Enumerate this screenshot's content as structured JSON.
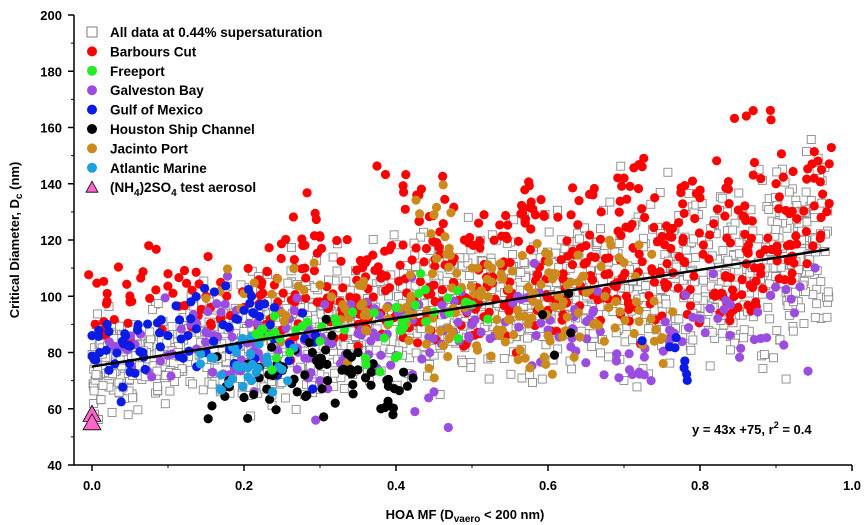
{
  "chart_data": {
    "type": "scatter",
    "xlabel_main": "HOA MF (D",
    "xlabel_sub": "vaero",
    "xlabel_rest": " < 200 nm)",
    "ylabel_main": "Critical Diameter, D",
    "ylabel_sub": "c",
    "ylabel_rest": " (nm)",
    "xlim": [
      -0.02,
      1.0
    ],
    "ylim": [
      40,
      200
    ],
    "xticks": [
      0.0,
      0.2,
      0.4,
      0.6,
      0.8,
      1.0
    ],
    "xtick_labels": [
      "0.0",
      "0.2",
      "0.4",
      "0.6",
      "0.8",
      "1.0"
    ],
    "yticks": [
      40,
      60,
      80,
      100,
      120,
      140,
      160,
      180,
      200
    ],
    "ytick_labels": [
      "40",
      "60",
      "80",
      "100",
      "120",
      "140",
      "160",
      "180",
      "200"
    ],
    "fit": {
      "slope": 43,
      "intercept": 75,
      "x_range": [
        0.0,
        0.97
      ]
    },
    "fit_label": "y = 43x +75, r",
    "fit_label_sup": "2",
    "fit_label_rest": " = 0.4",
    "legend": [
      {
        "label": "All data at 0.44% supersaturation",
        "marker": "square-open",
        "color": "#7f7f7f"
      },
      {
        "label": "Barbours Cut",
        "marker": "circle",
        "color": "#ff0000"
      },
      {
        "label": "Freeport",
        "marker": "circle",
        "color": "#22ee22"
      },
      {
        "label": "Galveston Bay",
        "marker": "circle",
        "color": "#9b4de0"
      },
      {
        "label": "Gulf of Mexico",
        "marker": "circle",
        "color": "#0a1be6"
      },
      {
        "label": "Houston Ship Channel",
        "marker": "circle",
        "color": "#000000"
      },
      {
        "label": "Jacinto Port",
        "marker": "circle",
        "color": "#cc8a1c"
      },
      {
        "label": "Atlantic Marine",
        "marker": "circle",
        "color": "#1ca0e0"
      },
      {
        "label": "(NH",
        "label_sub": "4",
        "label_rest": ")2SO",
        "label_sub2": "4",
        "label_rest2": " test aerosol",
        "marker": "triangle",
        "color": "#ff66cc"
      }
    ],
    "series": [
      {
        "name": "Barbours Cut",
        "color": "#ff0000",
        "points": [
          [
            0.02,
            101
          ],
          [
            0.05,
            98
          ],
          [
            0.1,
            108
          ],
          [
            0.15,
            100
          ],
          [
            0.2,
            96
          ],
          [
            0.24,
            104
          ],
          [
            0.28,
            110
          ],
          [
            0.3,
            98
          ],
          [
            0.33,
            103
          ],
          [
            0.36,
            112
          ],
          [
            0.38,
            94
          ],
          [
            0.42,
            107
          ],
          [
            0.44,
            117
          ],
          [
            0.46,
            98
          ],
          [
            0.49,
            120
          ],
          [
            0.52,
            104
          ],
          [
            0.55,
            112
          ],
          [
            0.57,
            126
          ],
          [
            0.6,
            95
          ],
          [
            0.62,
            108
          ],
          [
            0.65,
            118
          ],
          [
            0.67,
            130
          ],
          [
            0.69,
            99
          ],
          [
            0.72,
            115
          ],
          [
            0.74,
            105
          ],
          [
            0.76,
            124
          ],
          [
            0.78,
            112
          ],
          [
            0.8,
            135
          ],
          [
            0.82,
            100
          ],
          [
            0.84,
            119
          ],
          [
            0.86,
            127
          ],
          [
            0.87,
            166
          ],
          [
            0.88,
            108
          ],
          [
            0.9,
            140
          ],
          [
            0.92,
            114
          ],
          [
            0.94,
            123
          ],
          [
            0.96,
            145
          ],
          [
            0.97,
            133
          ],
          [
            0.35,
            90
          ],
          [
            0.45,
            93
          ],
          [
            0.55,
            99
          ],
          [
            0.65,
            102
          ],
          [
            0.75,
            93
          ],
          [
            0.85,
            96
          ],
          [
            0.25,
            88
          ],
          [
            0.41,
            137
          ],
          [
            0.58,
            131
          ],
          [
            0.7,
            142
          ],
          [
            0.3,
            121
          ],
          [
            0.5,
            86
          ]
        ]
      },
      {
        "name": "Freeport",
        "color": "#22ee22",
        "points": [
          [
            0.22,
            86
          ],
          [
            0.24,
            93
          ],
          [
            0.26,
            80
          ],
          [
            0.3,
            84
          ],
          [
            0.32,
            92
          ],
          [
            0.36,
            78
          ],
          [
            0.4,
            96
          ],
          [
            0.41,
            89
          ],
          [
            0.43,
            101
          ],
          [
            0.44,
            91
          ],
          [
            0.47,
            94
          ],
          [
            0.5,
            97
          ]
        ]
      },
      {
        "name": "Galveston Bay",
        "color": "#9b4de0",
        "points": [
          [
            0.04,
            82
          ],
          [
            0.09,
            77
          ],
          [
            0.13,
            90
          ],
          [
            0.16,
            86
          ],
          [
            0.19,
            95
          ],
          [
            0.21,
            80
          ],
          [
            0.23,
            88
          ],
          [
            0.26,
            92
          ],
          [
            0.28,
            78
          ],
          [
            0.31,
            84
          ],
          [
            0.34,
            93
          ],
          [
            0.37,
            87
          ],
          [
            0.4,
            79
          ],
          [
            0.43,
            97
          ],
          [
            0.46,
            83
          ],
          [
            0.5,
            90
          ],
          [
            0.53,
            86
          ],
          [
            0.56,
            100
          ],
          [
            0.6,
            88
          ],
          [
            0.63,
            82
          ],
          [
            0.66,
            95
          ],
          [
            0.69,
            77
          ],
          [
            0.72,
            73
          ],
          [
            0.76,
            88
          ],
          [
            0.8,
            92
          ],
          [
            0.84,
            97
          ],
          [
            0.88,
            85
          ],
          [
            0.92,
            99
          ],
          [
            0.45,
            66
          ],
          [
            0.3,
            70
          ],
          [
            0.18,
            72
          ]
        ]
      },
      {
        "name": "Gulf of Mexico",
        "color": "#0a1be6",
        "points": [
          [
            0.0,
            86
          ],
          [
            0.01,
            80
          ],
          [
            0.02,
            90
          ],
          [
            0.03,
            76
          ],
          [
            0.04,
            84
          ],
          [
            0.06,
            88
          ],
          [
            0.07,
            74
          ],
          [
            0.09,
            82
          ],
          [
            0.1,
            86
          ],
          [
            0.12,
            78
          ],
          [
            0.13,
            92
          ],
          [
            0.15,
            80
          ],
          [
            0.16,
            84
          ],
          [
            0.18,
            89
          ],
          [
            0.2,
            95
          ],
          [
            0.21,
            100
          ],
          [
            0.22,
            87
          ],
          [
            0.24,
            96
          ],
          [
            0.26,
            83
          ],
          [
            0.28,
            85
          ],
          [
            0.78,
            77
          ],
          [
            0.76,
            82
          ],
          [
            0.13,
            98
          ],
          [
            0.05,
            73
          ]
        ]
      },
      {
        "name": "Houston Ship Channel",
        "color": "#000000",
        "points": [
          [
            0.18,
            70
          ],
          [
            0.2,
            64
          ],
          [
            0.22,
            71
          ],
          [
            0.23,
            67
          ],
          [
            0.25,
            75
          ],
          [
            0.27,
            66
          ],
          [
            0.28,
            72
          ],
          [
            0.3,
            78
          ],
          [
            0.31,
            70
          ],
          [
            0.32,
            62
          ],
          [
            0.34,
            74
          ],
          [
            0.35,
            80
          ],
          [
            0.36,
            71
          ],
          [
            0.37,
            76
          ],
          [
            0.38,
            60
          ],
          [
            0.39,
            68
          ],
          [
            0.41,
            73
          ],
          [
            0.24,
            73
          ],
          [
            0.29,
            80
          ],
          [
            0.63,
            87
          ]
        ]
      },
      {
        "name": "Jacinto Port",
        "color": "#cc8a1c",
        "points": [
          [
            0.2,
            101
          ],
          [
            0.25,
            94
          ],
          [
            0.3,
            104
          ],
          [
            0.33,
            97
          ],
          [
            0.36,
            88
          ],
          [
            0.39,
            92
          ],
          [
            0.42,
            100
          ],
          [
            0.45,
            129
          ],
          [
            0.47,
            85
          ],
          [
            0.49,
            96
          ],
          [
            0.52,
            106
          ],
          [
            0.54,
            88
          ],
          [
            0.56,
            95
          ],
          [
            0.58,
            101
          ],
          [
            0.6,
            86
          ],
          [
            0.62,
            98
          ],
          [
            0.64,
            105
          ],
          [
            0.66,
            90
          ],
          [
            0.68,
            96
          ],
          [
            0.7,
            112
          ],
          [
            0.72,
            95
          ],
          [
            0.74,
            84
          ],
          [
            0.5,
            110
          ],
          [
            0.44,
            83
          ],
          [
            0.57,
            78
          ],
          [
            0.61,
            108
          ],
          [
            0.47,
            117
          ]
        ]
      },
      {
        "name": "Atlantic Marine",
        "color": "#1ca0e0",
        "points": [
          [
            0.16,
            78
          ],
          [
            0.17,
            72
          ],
          [
            0.19,
            80
          ],
          [
            0.2,
            75
          ],
          [
            0.22,
            83
          ],
          [
            0.23,
            77
          ],
          [
            0.25,
            74
          ],
          [
            0.21,
            70
          ],
          [
            0.18,
            69
          ]
        ]
      }
    ],
    "triangle_points": [
      [
        0.0,
        58
      ],
      [
        0.0,
        55
      ]
    ]
  }
}
